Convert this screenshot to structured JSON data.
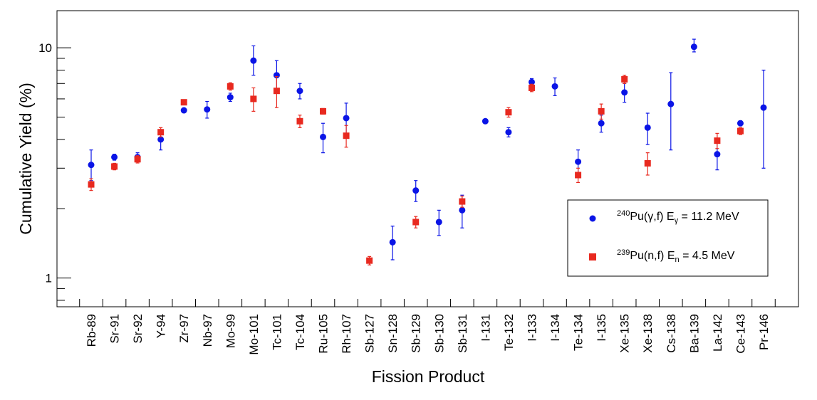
{
  "chart_data": {
    "type": "scatter",
    "title": "",
    "xlabel": "Fission Product",
    "ylabel": "Cumulative Yield (%)",
    "yscale": "log",
    "ylim": [
      0.75,
      14.5
    ],
    "y_ticks": [
      {
        "value": 1,
        "label": "1"
      },
      {
        "value": 10,
        "label": "10"
      }
    ],
    "grid": false,
    "legend_position": "bottom-right",
    "categories": [
      "Rb-89",
      "Sr-91",
      "Sr-92",
      "Y-94",
      "Zr-97",
      "Nb-97",
      "Mo-99",
      "Mo-101",
      "Tc-101",
      "Tc-104",
      "Ru-105",
      "Rh-107",
      "Sb-127",
      "Sn-128",
      "Sb-129",
      "Sb-130",
      "Sb-131",
      "I-131",
      "Te-132",
      "I-133",
      "I-134",
      "Te-134",
      "I-135",
      "Xe-135",
      "Xe-138",
      "Cs-138",
      "Ba-139",
      "La-142",
      "Ce-143",
      "Pr-146"
    ],
    "series": [
      {
        "legend": {
          "sup": "240",
          "main": "Pu(γ,f) E",
          "sub": "γ",
          "tail": " = 11.2 MeV"
        },
        "color": "#0a14e6",
        "marker": "circle",
        "points": [
          {
            "category": "Rb-89",
            "y": 3.1,
            "err_low": 0.45,
            "err_high": 0.5
          },
          {
            "category": "Sr-91",
            "y": 3.35,
            "err_low": 0.1,
            "err_high": 0.1
          },
          {
            "category": "Sr-92",
            "y": 3.35,
            "err_low": 0.15,
            "err_high": 0.15
          },
          {
            "category": "Y-94",
            "y": 4.0,
            "err_low": 0.4,
            "err_high": 0.4
          },
          {
            "category": "Zr-97",
            "y": 5.35,
            "err_low": 0.1,
            "err_high": 0.1
          },
          {
            "category": "Nb-97",
            "y": 5.4,
            "err_low": 0.45,
            "err_high": 0.45
          },
          {
            "category": "Mo-99",
            "y": 6.1,
            "err_low": 0.25,
            "err_high": 0.25
          },
          {
            "category": "Mo-101",
            "y": 8.8,
            "err_low": 1.2,
            "err_high": 1.4
          },
          {
            "category": "Tc-101",
            "y": 7.6,
            "err_low": 1.0,
            "err_high": 1.2
          },
          {
            "category": "Tc-104",
            "y": 6.5,
            "err_low": 0.5,
            "err_high": 0.5
          },
          {
            "category": "Ru-105",
            "y": 4.1,
            "err_low": 0.6,
            "err_high": 0.6
          },
          {
            "category": "Rh-107",
            "y": 4.95,
            "err_low": 0.7,
            "err_high": 0.8
          },
          {
            "category": "Sn-128",
            "y": 1.43,
            "err_low": 0.23,
            "err_high": 0.25
          },
          {
            "category": "Sb-129",
            "y": 2.4,
            "err_low": 0.25,
            "err_high": 0.25
          },
          {
            "category": "Sb-130",
            "y": 1.75,
            "err_low": 0.22,
            "err_high": 0.22
          },
          {
            "category": "Sb-131",
            "y": 1.97,
            "err_low": 0.32,
            "err_high": 0.32
          },
          {
            "category": "I-131",
            "y": 4.8,
            "err_low": 0.05,
            "err_high": 0.05
          },
          {
            "category": "Te-132",
            "y": 4.3,
            "err_low": 0.2,
            "err_high": 0.2
          },
          {
            "category": "I-133",
            "y": 7.1,
            "err_low": 0.25,
            "err_high": 0.25
          },
          {
            "category": "I-134",
            "y": 6.8,
            "err_low": 0.6,
            "err_high": 0.6
          },
          {
            "category": "Te-134",
            "y": 3.2,
            "err_low": 0.4,
            "err_high": 0.4
          },
          {
            "category": "I-135",
            "y": 4.7,
            "err_low": 0.4,
            "err_high": 0.4
          },
          {
            "category": "Xe-135",
            "y": 6.4,
            "err_low": 0.6,
            "err_high": 0.6
          },
          {
            "category": "Xe-138",
            "y": 4.5,
            "err_low": 0.7,
            "err_high": 0.7
          },
          {
            "category": "Cs-138",
            "y": 5.7,
            "err_low": 2.1,
            "err_high": 2.1
          },
          {
            "category": "Ba-139",
            "y": 10.1,
            "err_low": 0.5,
            "err_high": 0.8
          },
          {
            "category": "La-142",
            "y": 3.45,
            "err_low": 0.5,
            "err_high": 0.5
          },
          {
            "category": "Ce-143",
            "y": 4.7,
            "err_low": 0.12,
            "err_high": 0.12
          },
          {
            "category": "Pr-146",
            "y": 5.5,
            "err_low": 2.5,
            "err_high": 2.5
          }
        ]
      },
      {
        "legend": {
          "sup": "239",
          "main": "Pu(n,f) E",
          "sub": "n",
          "tail": " = 4.5 MeV"
        },
        "color": "#e8291f",
        "marker": "square",
        "points": [
          {
            "category": "Rb-89",
            "y": 2.55,
            "err_low": 0.15,
            "err_high": 0.15
          },
          {
            "category": "Sr-91",
            "y": 3.05,
            "err_low": 0.1,
            "err_high": 0.1
          },
          {
            "category": "Sr-92",
            "y": 3.28,
            "err_low": 0.12,
            "err_high": 0.12
          },
          {
            "category": "Y-94",
            "y": 4.3,
            "err_low": 0.2,
            "err_high": 0.2
          },
          {
            "category": "Zr-97",
            "y": 5.8,
            "err_low": 0.12,
            "err_high": 0.12
          },
          {
            "category": "Mo-99",
            "y": 6.8,
            "err_low": 0.25,
            "err_high": 0.25
          },
          {
            "category": "Mo-101",
            "y": 6.0,
            "err_low": 0.7,
            "err_high": 0.7
          },
          {
            "category": "Tc-101",
            "y": 6.5,
            "err_low": 1.0,
            "err_high": 1.0
          },
          {
            "category": "Tc-104",
            "y": 4.8,
            "err_low": 0.3,
            "err_high": 0.3
          },
          {
            "category": "Ru-105",
            "y": 5.3,
            "err_low": 0.15,
            "err_high": 0.15
          },
          {
            "category": "Rh-107",
            "y": 4.15,
            "err_low": 0.45,
            "err_high": 0.45
          },
          {
            "category": "Sb-127",
            "y": 1.19,
            "err_low": 0.05,
            "err_high": 0.05
          },
          {
            "category": "Sb-129",
            "y": 1.75,
            "err_low": 0.1,
            "err_high": 0.1
          },
          {
            "category": "Sb-131",
            "y": 2.15,
            "err_low": 0.12,
            "err_high": 0.12
          },
          {
            "category": "Te-132",
            "y": 5.25,
            "err_low": 0.25,
            "err_high": 0.25
          },
          {
            "category": "I-133",
            "y": 6.7,
            "err_low": 0.25,
            "err_high": 0.25
          },
          {
            "category": "Te-134",
            "y": 2.8,
            "err_low": 0.2,
            "err_high": 0.2
          },
          {
            "category": "I-135",
            "y": 5.3,
            "err_low": 0.4,
            "err_high": 0.4
          },
          {
            "category": "Xe-135",
            "y": 7.3,
            "err_low": 0.3,
            "err_high": 0.3
          },
          {
            "category": "Xe-138",
            "y": 3.15,
            "err_low": 0.35,
            "err_high": 0.35
          },
          {
            "category": "La-142",
            "y": 3.95,
            "err_low": 0.3,
            "err_high": 0.3
          },
          {
            "category": "Ce-143",
            "y": 4.35,
            "err_low": 0.15,
            "err_high": 0.15
          }
        ]
      }
    ]
  }
}
